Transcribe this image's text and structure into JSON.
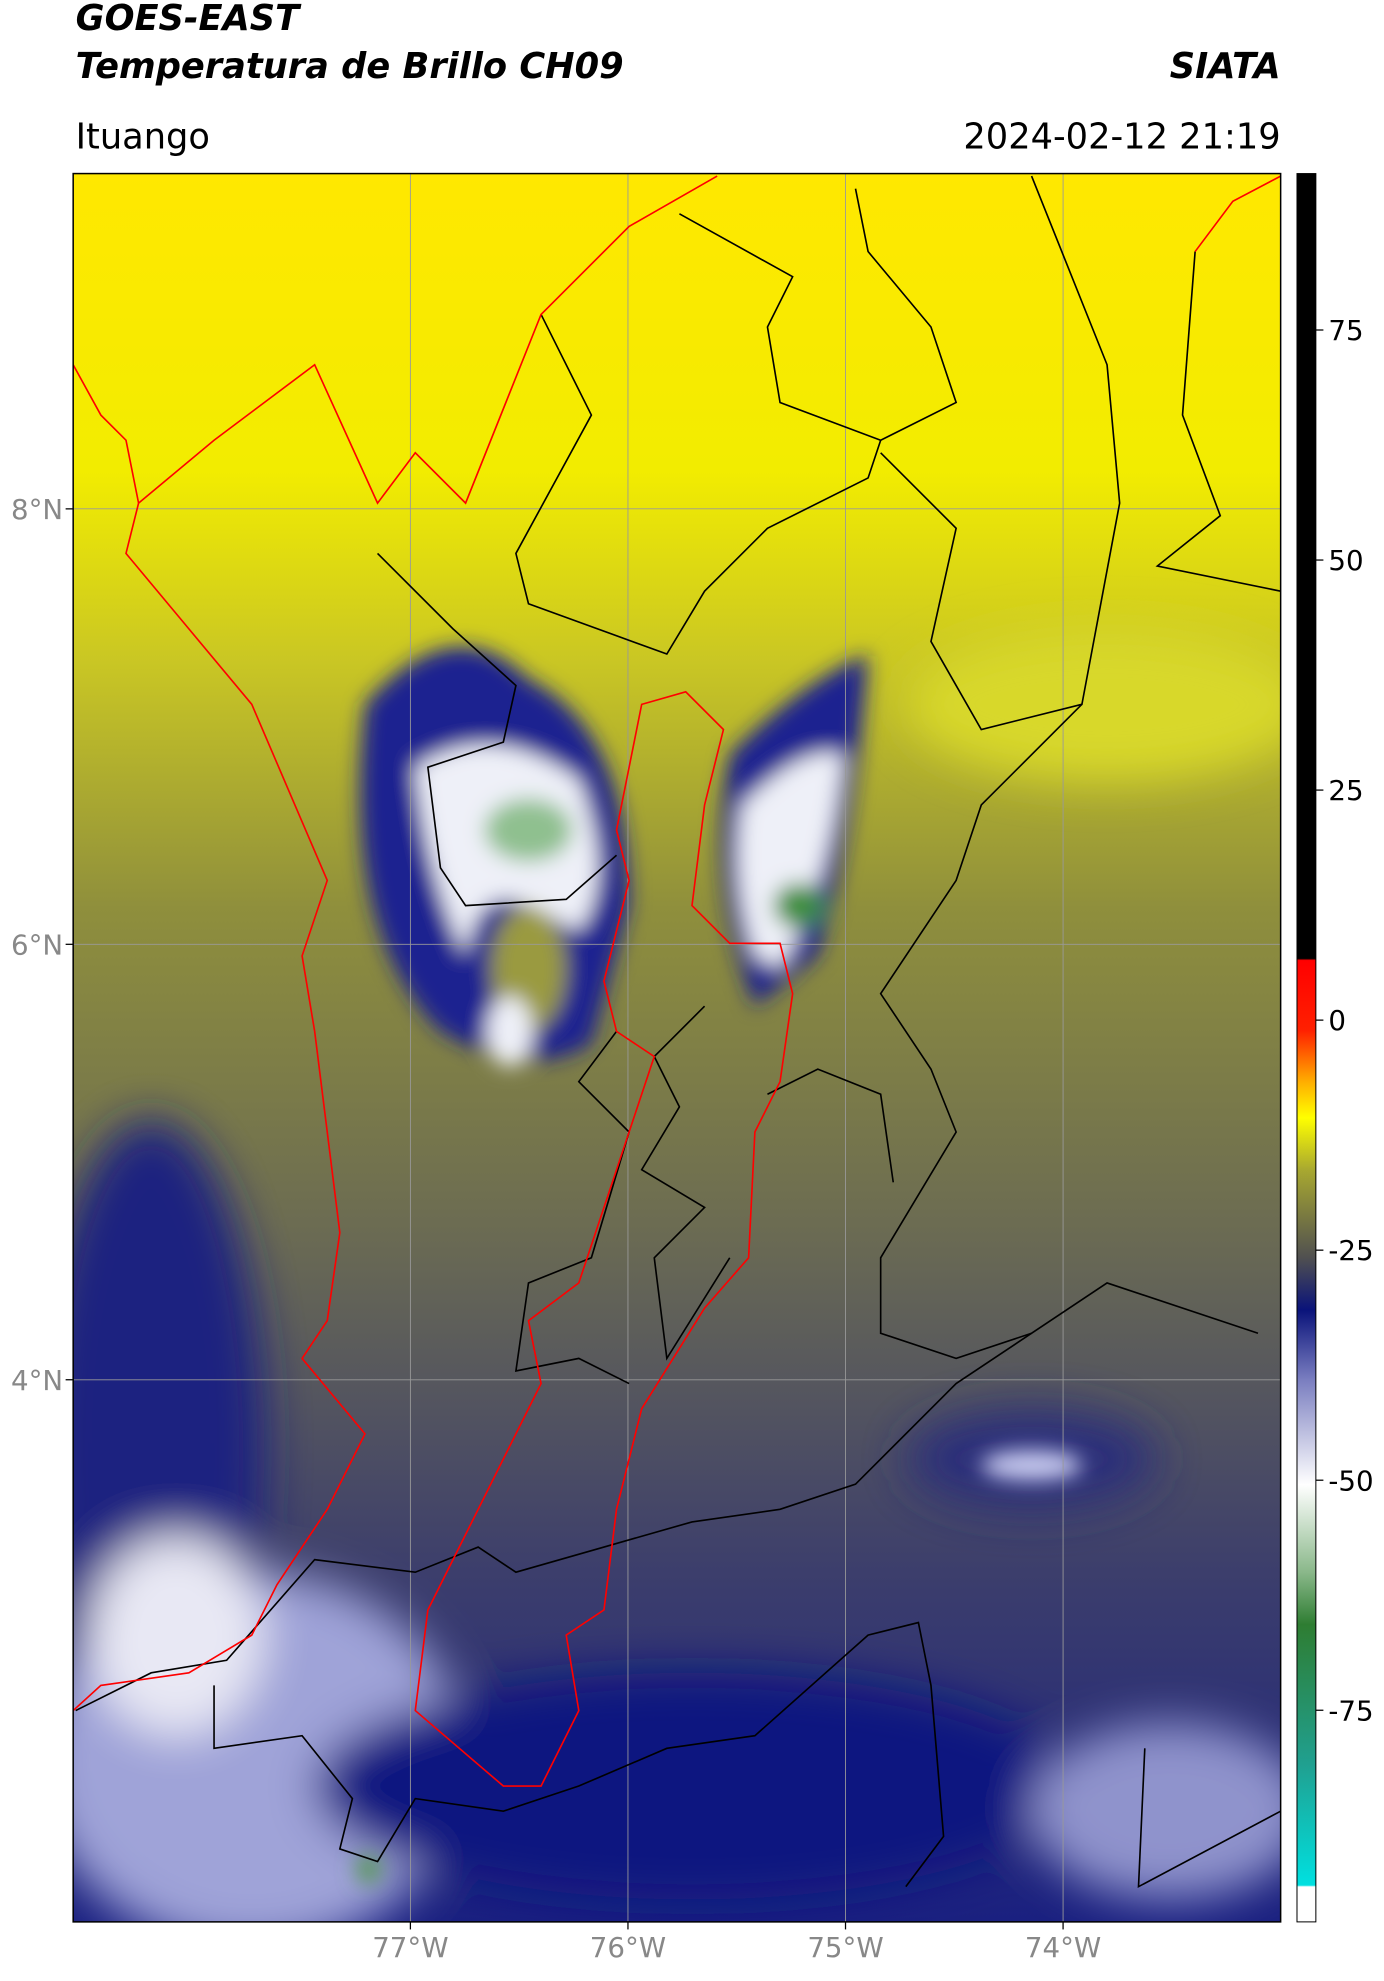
{
  "header": {
    "title": "GOES-EAST",
    "subtitle": "Temperatura de Brillo CH09",
    "brand": "SIATA",
    "region": "Ituango",
    "datetime": "2024-02-12 21:19"
  },
  "map": {
    "lon_range": [
      -78.55,
      -73.0
    ],
    "lat_range": [
      1.51,
      9.54
    ],
    "lon_ticks": [
      {
        "value": -77,
        "label": "77°W"
      },
      {
        "value": -76,
        "label": "76°W"
      },
      {
        "value": -75,
        "label": "75°W"
      },
      {
        "value": -74,
        "label": "74°W"
      }
    ],
    "lat_ticks": [
      {
        "value": 8,
        "label": "8°N"
      },
      {
        "value": 6,
        "label": "6°N"
      },
      {
        "value": 4,
        "label": "4°N"
      }
    ]
  },
  "colorbar": {
    "range": [
      -98,
      92
    ],
    "ticks": [
      75,
      50,
      25,
      0,
      -25,
      -50,
      -75
    ]
  }
}
